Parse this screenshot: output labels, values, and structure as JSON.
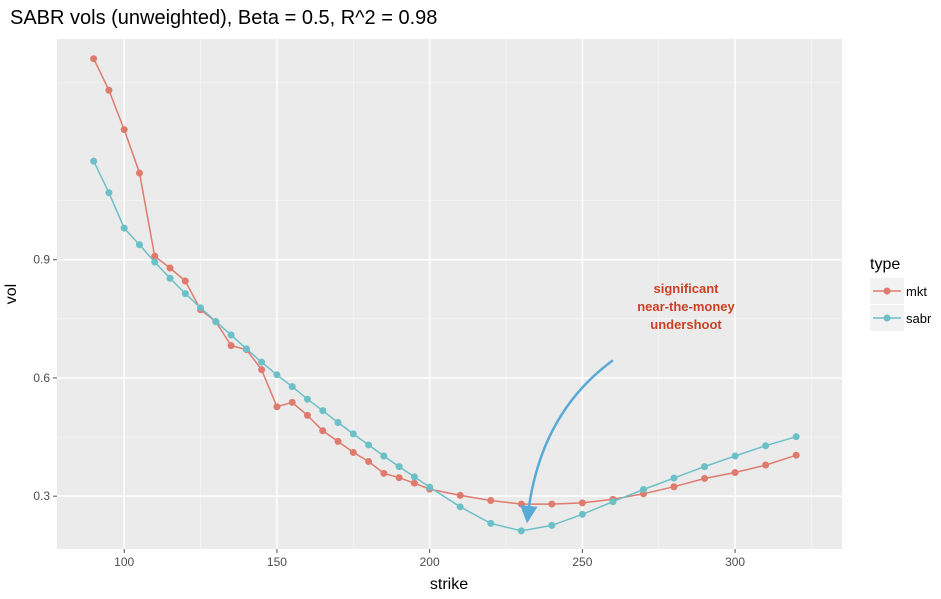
{
  "chart_data": {
    "type": "line",
    "title": "SABR vols (unweighted), Beta = 0.5, R^2 = 0.98",
    "xlabel": "strike",
    "ylabel": "vol",
    "xlim": [
      78,
      335
    ],
    "ylim": [
      0.166,
      1.46
    ],
    "x_ticks": [
      100,
      150,
      200,
      250,
      300
    ],
    "y_ticks": [
      0.3,
      0.6,
      0.9
    ],
    "x_tick_labels": [
      "100",
      "150",
      "200",
      "250",
      "300"
    ],
    "y_tick_labels": [
      "0.3",
      "0.6",
      "0.9"
    ],
    "grid": true,
    "legend": {
      "title": "type",
      "position": "right",
      "entries": [
        "mkt",
        "sabr"
      ]
    },
    "series": [
      {
        "name": "mkt",
        "color": "#df7b6d",
        "x": [
          90,
          95,
          100,
          105,
          110,
          115,
          120,
          125,
          130,
          135,
          140,
          145,
          150,
          155,
          160,
          165,
          170,
          175,
          180,
          185,
          190,
          195,
          200,
          210,
          220,
          230,
          240,
          250,
          260,
          270,
          280,
          290,
          300,
          310,
          320
        ],
        "y": [
          1.41,
          1.33,
          1.23,
          1.12,
          0.909,
          0.879,
          0.846,
          0.773,
          0.743,
          0.682,
          0.672,
          0.621,
          0.527,
          0.538,
          0.505,
          0.466,
          0.439,
          0.411,
          0.388,
          0.358,
          0.347,
          0.333,
          0.318,
          0.302,
          0.289,
          0.28,
          0.28,
          0.283,
          0.292,
          0.306,
          0.324,
          0.345,
          0.36,
          0.379,
          0.404
        ]
      },
      {
        "name": "sabr",
        "color": "#6cc0c8",
        "x": [
          90,
          95,
          100,
          105,
          110,
          115,
          120,
          125,
          130,
          135,
          140,
          145,
          150,
          155,
          160,
          165,
          170,
          175,
          180,
          185,
          190,
          195,
          200,
          210,
          220,
          230,
          240,
          250,
          260,
          270,
          280,
          290,
          300,
          310,
          320
        ],
        "y": [
          1.15,
          1.07,
          0.98,
          0.938,
          0.894,
          0.853,
          0.814,
          0.778,
          0.743,
          0.709,
          0.674,
          0.64,
          0.608,
          0.578,
          0.546,
          0.517,
          0.487,
          0.458,
          0.43,
          0.402,
          0.375,
          0.349,
          0.323,
          0.273,
          0.231,
          0.212,
          0.226,
          0.254,
          0.286,
          0.317,
          0.346,
          0.375,
          0.402,
          0.428,
          0.451
        ]
      }
    ],
    "annotation": {
      "lines": [
        "significant",
        "near-the-money",
        "undershoot"
      ],
      "color": "#cc4125",
      "arrow_color": "#5aaad8",
      "arrow_from": [
        260,
        0.645
      ],
      "arrow_to": [
        232,
        0.24
      ]
    }
  }
}
